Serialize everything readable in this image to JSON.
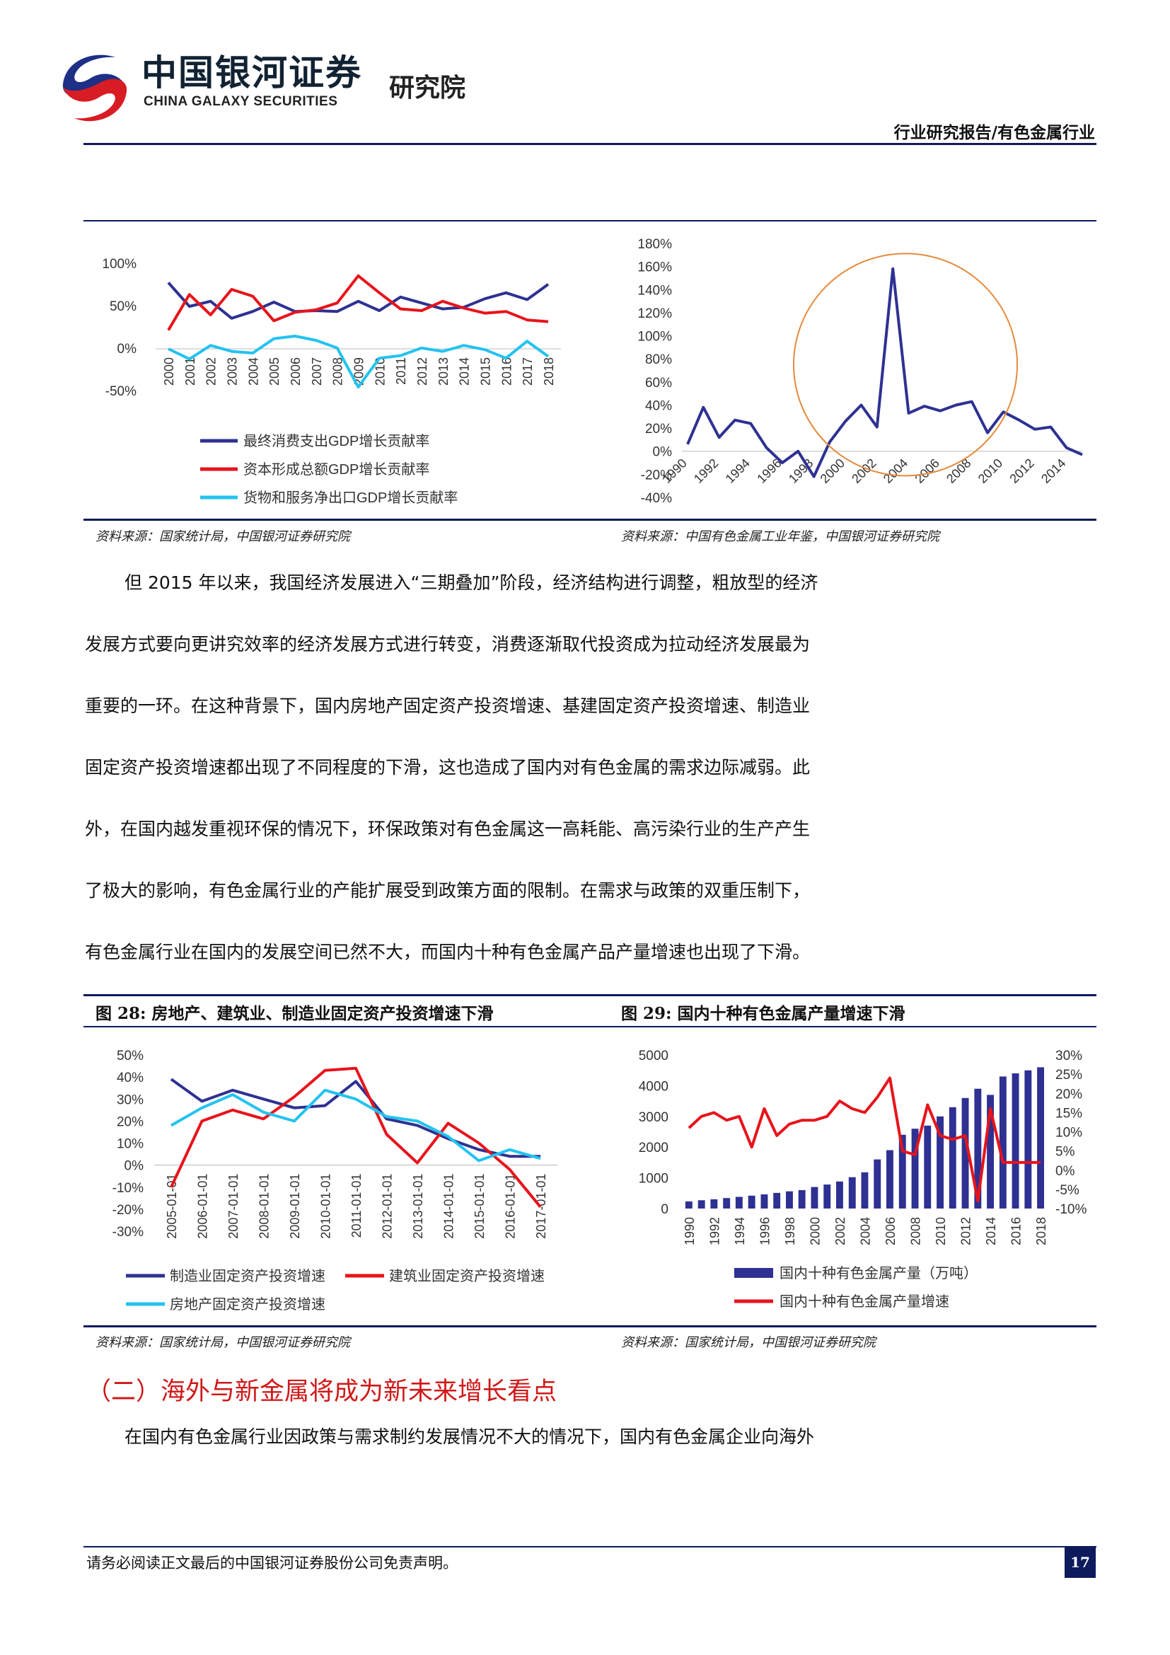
{
  "header": {
    "logo_cn": "中国银河证券",
    "logo_en": "CHINA GALAXY SECURITIES",
    "logo_institute": "研究院",
    "report_type": "行业研究报告/有色金属行业"
  },
  "sources": {
    "top_left": "资料来源：国家统计局，中国银河证券研究院",
    "top_right": "资料来源：中国有色金属工业年鉴，中国银河证券研究院",
    "bottom_left": "资料来源：国家统计局，中国银河证券研究院",
    "bottom_right": "资料来源：国家统计局，中国银河证券研究院"
  },
  "body": {
    "para1_lines": [
      "但 2015 年以来，我国经济发展进入“三期叠加”阶段，经济结构进行调整，粗放型的经济",
      "发展方式要向更讲究效率的经济发展方式进行转变，消费逐渐取代投资成为拉动经济发展最为",
      "重要的一环。在这种背景下，国内房地产固定资产投资增速、基建固定资产投资增速、制造业",
      "固定资产投资增速都出现了不同程度的下滑，这也造成了国内对有色金属的需求边际减弱。此",
      "外，在国内越发重视环保的情况下，环保政策对有色金属这一高耗能、高污染行业的生产产生",
      "了极大的影响，有色金属行业的产能扩展受到政策方面的限制。在需求与政策的双重压制下，",
      "有色金属行业在国内的发展空间已然不大，而国内十种有色金属产品产量增速也出现了下滑。"
    ],
    "section_heading": "（二）海外与新金属将成为新未来增长看点",
    "para2_line": "在国内有色金属行业因政策与需求制约发展情况不大的情况下，国内有色金属企业向海外"
  },
  "figures": {
    "fig28_title": "图 28:  房地产、建筑业、制造业固定资产投资增速下滑",
    "fig29_title": "图 29:  国内十种有色金属产量增速下滑"
  },
  "footer": {
    "disclaimer": "请务必阅读正文最后的中国银河证券股份公司免责声明。",
    "page_number": "17"
  },
  "colors": {
    "navy": "#2e3192",
    "red": "#e8131b",
    "cyan": "#23c3f0",
    "orange": "#e68a3c",
    "rule": "#0d1a5c"
  },
  "chart_data": [
    {
      "type": "line",
      "title": "",
      "categories": [
        "2000",
        "2001",
        "2002",
        "2003",
        "2004",
        "2005",
        "2006",
        "2007",
        "2008",
        "2009",
        "2010",
        "2011",
        "2012",
        "2013",
        "2014",
        "2015",
        "2016",
        "2017",
        "2018"
      ],
      "series": [
        {
          "name": "最终消费支出GDP增长贡献率",
          "values": [
            78,
            50,
            56,
            36,
            44,
            55,
            44,
            45,
            44,
            56,
            45,
            61,
            54,
            47,
            49,
            59,
            66,
            58,
            76
          ]
        },
        {
          "name": "资本形成总额GDP增长贡献率",
          "values": [
            22,
            64,
            40,
            70,
            62,
            33,
            43,
            46,
            54,
            86,
            66,
            47,
            45,
            56,
            48,
            42,
            44,
            34,
            32
          ]
        },
        {
          "name": "货物和服务净出口GDP增长贡献率",
          "values": [
            0,
            -12,
            4,
            -3,
            -5,
            12,
            15,
            10,
            1,
            -45,
            -11,
            -8,
            1,
            -3,
            4,
            -1,
            -11,
            9,
            -9
          ]
        }
      ],
      "yticks": [
        "100%",
        "50%",
        "0%",
        "-50%"
      ],
      "ylim": [
        -50,
        100
      ],
      "legend_position": "bottom"
    },
    {
      "type": "line",
      "title": "",
      "x": [
        1990,
        1991,
        1992,
        1993,
        1994,
        1995,
        1996,
        1997,
        1998,
        1999,
        2000,
        2001,
        2002,
        2003,
        2004,
        2005,
        2006,
        2007,
        2008,
        2009,
        2010,
        2011,
        2012,
        2013,
        2014,
        2015
      ],
      "series": [
        {
          "name": "",
          "values": [
            6,
            38,
            12,
            27,
            24,
            3,
            -10,
            0,
            -22,
            8,
            26,
            40,
            21,
            158,
            33,
            39,
            35,
            40,
            43,
            16,
            34,
            27,
            19,
            21,
            3,
            -3
          ]
        }
      ],
      "xticks": [
        "1990",
        "1992",
        "1994",
        "1996",
        "1998",
        "2000",
        "2002",
        "2004",
        "2006",
        "2008",
        "2010",
        "2012",
        "2014"
      ],
      "yticks": [
        "180%",
        "160%",
        "140%",
        "120%",
        "100%",
        "80%",
        "60%",
        "40%",
        "20%",
        "0%",
        "-20%",
        "-40%"
      ],
      "ylim": [
        -40,
        180
      ],
      "annotation": "orange circle highlighting 1999-2009 spike"
    },
    {
      "type": "line",
      "title": "图 28:  房地产、建筑业、制造业固定资产投资增速下滑",
      "categories": [
        "2005-01-01",
        "2006-01-01",
        "2007-01-01",
        "2008-01-01",
        "2009-01-01",
        "2010-01-01",
        "2011-01-01",
        "2012-01-01",
        "2013-01-01",
        "2014-01-01",
        "2015-01-01",
        "2016-01-01",
        "2017-01-01"
      ],
      "series": [
        {
          "name": "制造业固定资产投资增速",
          "values": [
            39,
            29,
            34,
            30,
            26,
            27,
            38,
            21,
            18,
            12,
            7,
            4,
            4
          ]
        },
        {
          "name": "建筑业固定资产投资增速",
          "values": [
            -10,
            20,
            25,
            21,
            31,
            43,
            44,
            14,
            1,
            19,
            10,
            -2,
            -19
          ]
        },
        {
          "name": "房地产固定资产投资增速",
          "values": [
            18,
            26,
            32,
            24,
            20,
            34,
            30,
            22,
            20,
            13,
            2,
            7,
            3
          ]
        }
      ],
      "yticks": [
        "50%",
        "40%",
        "30%",
        "20%",
        "10%",
        "0%",
        "-10%",
        "-20%",
        "-30%"
      ],
      "ylim": [
        -30,
        50
      ],
      "legend_position": "bottom"
    },
    {
      "type": "bar",
      "title": "图 29:  国内十种有色金属产量增速下滑",
      "x": [
        1990,
        1991,
        1992,
        1993,
        1994,
        1995,
        1996,
        1997,
        1998,
        1999,
        2000,
        2001,
        2002,
        2003,
        2004,
        2005,
        2006,
        2007,
        2008,
        2009,
        2010,
        2011,
        2012,
        2013,
        2014,
        2015,
        2016,
        2017,
        2018
      ],
      "xticks": [
        "1990",
        "1992",
        "1994",
        "1996",
        "1998",
        "2000",
        "2002",
        "2004",
        "2006",
        "2008",
        "2010",
        "2012",
        "2014",
        "2016",
        "2018"
      ],
      "series": [
        {
          "name": "国内十种有色金属产量（万吨）",
          "axis": "left",
          "values": [
            230,
            270,
            300,
            340,
            380,
            420,
            460,
            510,
            560,
            600,
            700,
            780,
            880,
            1020,
            1180,
            1600,
            1900,
            2400,
            2600,
            2700,
            3000,
            3300,
            3600,
            3900,
            3700,
            4300,
            4400,
            4500,
            4600
          ]
        },
        {
          "name": "国内十种有色金属产量增速",
          "axis": "right",
          "values": [
            11,
            14,
            15,
            13,
            14,
            6,
            16,
            9,
            12,
            13,
            13,
            14,
            18,
            16,
            15,
            19,
            24,
            5,
            4,
            17,
            9,
            8,
            9,
            -8,
            16,
            2,
            2,
            2,
            2
          ]
        }
      ],
      "left_yticks": [
        "5000",
        "4000",
        "3000",
        "2000",
        "1000",
        "0"
      ],
      "right_yticks": [
        "30%",
        "25%",
        "20%",
        "15%",
        "10%",
        "5%",
        "0%",
        "-5%",
        "-10%"
      ],
      "left_ylim": [
        0,
        5000
      ],
      "right_ylim": [
        -10,
        30
      ],
      "legend_position": "bottom"
    }
  ]
}
